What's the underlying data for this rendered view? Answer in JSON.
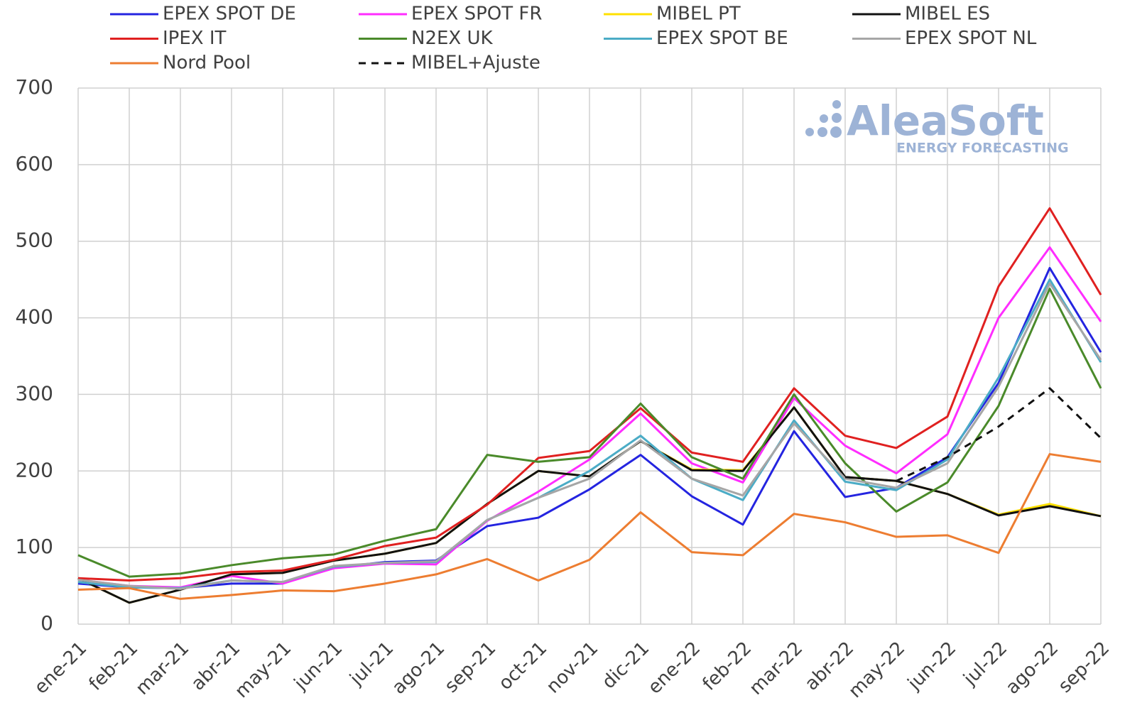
{
  "chart_data": {
    "type": "line",
    "watermark": "AleaSoft",
    "watermark_subtitle": "ENERGY FORECASTING",
    "categories": [
      "ene-21",
      "feb-21",
      "mar-21",
      "abr-21",
      "may-21",
      "jun-21",
      "jul-21",
      "ago-21",
      "sep-21",
      "oct-21",
      "nov-21",
      "dic-21",
      "ene-22",
      "feb-22",
      "mar-22",
      "abr-22",
      "may-22",
      "jun-22",
      "jul-22",
      "ago-22",
      "sep-22"
    ],
    "ylim": [
      0,
      700
    ],
    "yticks": [
      0,
      100,
      200,
      300,
      400,
      500,
      600,
      700
    ],
    "grid": true,
    "series": [
      {
        "name": "EPEX SPOT DE",
        "color": "#2424e0",
        "values": [
          53,
          48,
          47,
          53,
          53,
          74,
          81,
          83,
          128,
          139,
          176,
          221,
          167,
          130,
          252,
          166,
          178,
          218,
          315,
          465,
          355
        ]
      },
      {
        "name": "EPEX SPOT FR",
        "color": "#ff2dff",
        "values": [
          58,
          50,
          48,
          63,
          53,
          73,
          79,
          78,
          135,
          173,
          215,
          275,
          210,
          185,
          295,
          233,
          197,
          248,
          400,
          492,
          395
        ]
      },
      {
        "name": "MIBEL PT",
        "color": "#ffe000",
        "values": [
          60,
          28,
          45,
          65,
          67,
          83,
          92,
          106,
          157,
          200,
          193,
          239,
          202,
          201,
          283,
          192,
          187,
          170,
          143,
          157,
          141
        ]
      },
      {
        "name": "MIBEL ES",
        "color": "#111111",
        "values": [
          60,
          28,
          45,
          65,
          67,
          83,
          92,
          106,
          157,
          200,
          193,
          239,
          201,
          200,
          283,
          192,
          187,
          170,
          142,
          154,
          141
        ]
      },
      {
        "name": "IPEX IT",
        "color": "#e02020",
        "values": [
          60,
          57,
          60,
          68,
          70,
          84,
          102,
          113,
          156,
          217,
          226,
          282,
          224,
          212,
          308,
          246,
          230,
          271,
          441,
          543,
          430
        ]
      },
      {
        "name": "N2EX UK",
        "color": "#4a8a2a",
        "values": [
          90,
          62,
          66,
          77,
          86,
          91,
          109,
          124,
          221,
          212,
          218,
          288,
          218,
          190,
          300,
          210,
          147,
          185,
          285,
          438,
          308
        ]
      },
      {
        "name": "EPEX SPOT BE",
        "color": "#4bacc6",
        "values": [
          55,
          48,
          47,
          57,
          55,
          75,
          80,
          81,
          136,
          165,
          200,
          246,
          190,
          162,
          266,
          186,
          175,
          215,
          322,
          450,
          342
        ]
      },
      {
        "name": "EPEX SPOT NL",
        "color": "#a6a6a6",
        "values": [
          58,
          50,
          46,
          57,
          55,
          76,
          80,
          82,
          136,
          165,
          190,
          240,
          190,
          168,
          262,
          190,
          178,
          210,
          310,
          445,
          345
        ]
      },
      {
        "name": "Nord Pool",
        "color": "#ed7d31",
        "values": [
          45,
          47,
          33,
          38,
          44,
          43,
          53,
          65,
          85,
          57,
          84,
          146,
          94,
          90,
          144,
          133,
          114,
          116,
          93,
          222,
          212
        ]
      },
      {
        "name": "MIBEL+Ajuste",
        "color": "#111111",
        "dashed": true,
        "values": [
          null,
          null,
          null,
          null,
          null,
          null,
          null,
          null,
          null,
          null,
          null,
          null,
          null,
          null,
          null,
          192,
          187,
          218,
          258,
          308,
          243
        ]
      }
    ]
  }
}
